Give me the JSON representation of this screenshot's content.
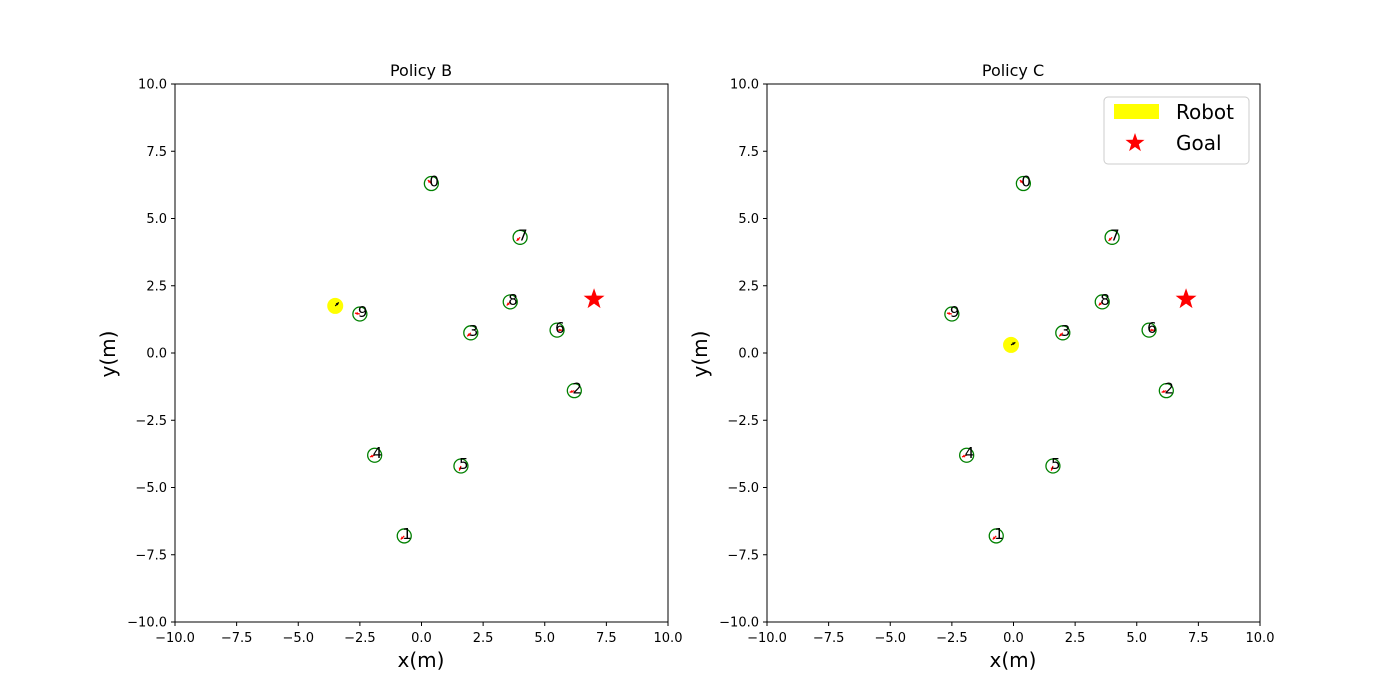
{
  "colors": {
    "robot": "#ffff00",
    "goal": "#ff0000",
    "human_circle": "#008000",
    "heading": "#ff0000",
    "axes": "#000000",
    "background": "#ffffff"
  },
  "chart_data": [
    {
      "type": "scatter",
      "title": "Policy B",
      "xlabel": "x(m)",
      "ylabel": "y(m)",
      "xlim": [
        -10,
        10
      ],
      "ylim": [
        -10,
        10
      ],
      "xticks": [
        -10,
        -7.5,
        -5,
        -2.5,
        0,
        2.5,
        5,
        7.5,
        10
      ],
      "yticks": [
        -10,
        -7.5,
        -5,
        -2.5,
        0,
        2.5,
        5,
        7.5,
        10
      ],
      "xtick_labels": [
        "−10.0",
        "−7.5",
        "−5.0",
        "−2.5",
        "0.0",
        "2.5",
        "5.0",
        "7.5",
        "10.0"
      ],
      "ytick_labels": [
        "−10.0",
        "−7.5",
        "−5.0",
        "−2.5",
        "0.0",
        "2.5",
        "5.0",
        "7.5",
        "10.0"
      ],
      "grid": false,
      "legend": null,
      "robot": {
        "x": -3.5,
        "y": 1.75,
        "heading_deg": 45
      },
      "goal": {
        "x": 7.0,
        "y": 2.0
      },
      "humans": [
        {
          "id": "0",
          "x": 0.4,
          "y": 6.3,
          "heading_deg": 135
        },
        {
          "id": "1",
          "x": -0.7,
          "y": -6.8,
          "heading_deg": 225
        },
        {
          "id": "2",
          "x": 6.2,
          "y": -1.4,
          "heading_deg": 200
        },
        {
          "id": "3",
          "x": 2.0,
          "y": 0.75,
          "heading_deg": 225
        },
        {
          "id": "4",
          "x": -1.9,
          "y": -3.8,
          "heading_deg": 200
        },
        {
          "id": "5",
          "x": 1.6,
          "y": -4.2,
          "heading_deg": 250
        },
        {
          "id": "6",
          "x": 5.5,
          "y": 0.85,
          "heading_deg": 0
        },
        {
          "id": "7",
          "x": 4.0,
          "y": 4.3,
          "heading_deg": 225
        },
        {
          "id": "8",
          "x": 3.6,
          "y": 1.9,
          "heading_deg": 225
        },
        {
          "id": "9",
          "x": -2.5,
          "y": 1.45,
          "heading_deg": 170
        }
      ]
    },
    {
      "type": "scatter",
      "title": "Policy C",
      "xlabel": "x(m)",
      "ylabel": "y(m)",
      "xlim": [
        -10,
        10
      ],
      "ylim": [
        -10,
        10
      ],
      "xticks": [
        -10,
        -7.5,
        -5,
        -2.5,
        0,
        2.5,
        5,
        7.5,
        10
      ],
      "yticks": [
        -10,
        -7.5,
        -5,
        -2.5,
        0,
        2.5,
        5,
        7.5,
        10
      ],
      "xtick_labels": [
        "−10.0",
        "−7.5",
        "−5.0",
        "−2.5",
        "0.0",
        "2.5",
        "5.0",
        "7.5",
        "10.0"
      ],
      "ytick_labels": [
        "−10.0",
        "−7.5",
        "−5.0",
        "−2.5",
        "0.0",
        "2.5",
        "5.0",
        "7.5",
        "10.0"
      ],
      "grid": false,
      "legend": {
        "placement": "upper right",
        "entries": [
          {
            "label": "Robot",
            "marker": "rectangle",
            "color": "#ffff00"
          },
          {
            "label": "Goal",
            "marker": "star",
            "color": "#ff0000"
          }
        ]
      },
      "robot": {
        "x": -0.1,
        "y": 0.3,
        "heading_deg": 30
      },
      "goal": {
        "x": 7.0,
        "y": 2.0
      },
      "humans": [
        {
          "id": "0",
          "x": 0.4,
          "y": 6.3,
          "heading_deg": 135
        },
        {
          "id": "1",
          "x": -0.7,
          "y": -6.8,
          "heading_deg": 225
        },
        {
          "id": "2",
          "x": 6.2,
          "y": -1.4,
          "heading_deg": 200
        },
        {
          "id": "3",
          "x": 2.0,
          "y": 0.75,
          "heading_deg": 225
        },
        {
          "id": "4",
          "x": -1.9,
          "y": -3.8,
          "heading_deg": 200
        },
        {
          "id": "5",
          "x": 1.6,
          "y": -4.2,
          "heading_deg": 250
        },
        {
          "id": "6",
          "x": 5.5,
          "y": 0.85,
          "heading_deg": 0
        },
        {
          "id": "7",
          "x": 4.0,
          "y": 4.3,
          "heading_deg": 225
        },
        {
          "id": "8",
          "x": 3.6,
          "y": 1.9,
          "heading_deg": 225
        },
        {
          "id": "9",
          "x": -2.5,
          "y": 1.45,
          "heading_deg": 170
        }
      ]
    }
  ]
}
